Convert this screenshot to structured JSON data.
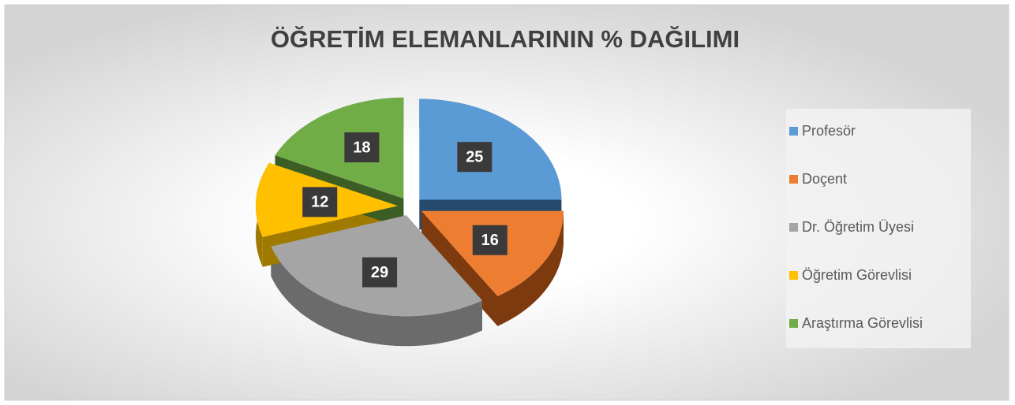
{
  "chart_data": {
    "type": "pie",
    "title": "ÖĞRETİM ELEMANLARININ % DAĞILIMI",
    "categories": [
      "Profesör",
      "Doçent",
      "Dr. Öğretim Üyesi",
      "Öğretim Görevlisi",
      "Araştırma Görevlisi"
    ],
    "values": [
      25,
      16,
      29,
      12,
      18
    ],
    "colors": [
      "#5b9bd5",
      "#ed7d31",
      "#a5a5a5",
      "#ffc000",
      "#70ad47"
    ],
    "side_colors": [
      "#264a6e",
      "#7d3a0e",
      "#6b6b6b",
      "#a07a00",
      "#3b5e25"
    ],
    "legend": "right"
  }
}
